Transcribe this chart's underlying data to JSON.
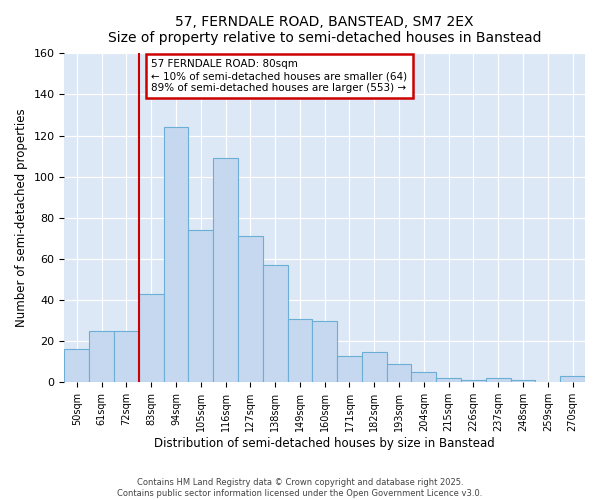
{
  "title": "57, FERNDALE ROAD, BANSTEAD, SM7 2EX",
  "subtitle": "Size of property relative to semi-detached houses in Banstead",
  "xlabel": "Distribution of semi-detached houses by size in Banstead",
  "ylabel": "Number of semi-detached properties",
  "categories": [
    "50sqm",
    "61sqm",
    "72sqm",
    "83sqm",
    "94sqm",
    "105sqm",
    "116sqm",
    "127sqm",
    "138sqm",
    "149sqm",
    "160sqm",
    "171sqm",
    "182sqm",
    "193sqm",
    "204sqm",
    "215sqm",
    "226sqm",
    "237sqm",
    "248sqm",
    "259sqm",
    "270sqm"
  ],
  "values": [
    16,
    25,
    25,
    43,
    124,
    74,
    109,
    71,
    57,
    31,
    30,
    13,
    15,
    9,
    5,
    2,
    1,
    2,
    1,
    0,
    3
  ],
  "bar_color": "#c5d8f0",
  "bar_edge_color": "#6baed6",
  "plot_bg_color": "#dce8f5",
  "fig_bg_color": "#ffffff",
  "vline_color": "#cc0000",
  "vline_x_index": 3,
  "annotation_title": "57 FERNDALE ROAD: 80sqm",
  "annotation_line1": "← 10% of semi-detached houses are smaller (64)",
  "annotation_line2": "89% of semi-detached houses are larger (553) →",
  "annotation_box_edgecolor": "#cc0000",
  "annotation_box_facecolor": "#ffffff",
  "ylim": [
    0,
    160
  ],
  "yticks": [
    0,
    20,
    40,
    60,
    80,
    100,
    120,
    140,
    160
  ],
  "footnote1": "Contains HM Land Registry data © Crown copyright and database right 2025.",
  "footnote2": "Contains public sector information licensed under the Open Government Licence v3.0."
}
